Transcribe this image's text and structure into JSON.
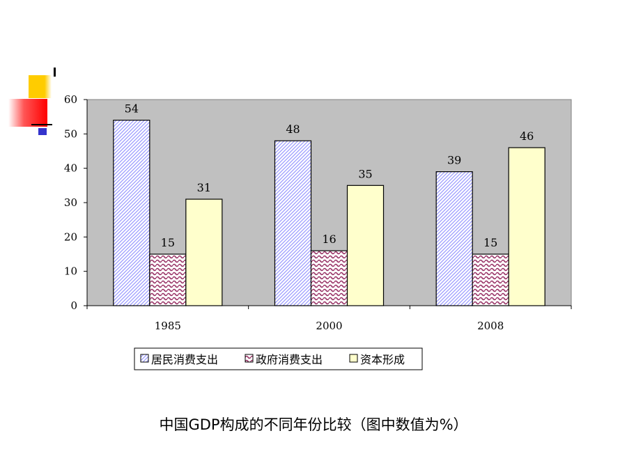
{
  "caption": "中国GDP构成的不同年份比较（图中数值为%）",
  "colors": {
    "plot_bg": "#c0c0c0",
    "bar_outline": "#000000",
    "series_1_hatch": "#9999ff",
    "series_2_hatch": "#993366",
    "series_3_fill": "#ffffcc",
    "deco_yellow": "#ffcc00",
    "deco_red": "#ff0000",
    "deco_blue": "#3333cc"
  },
  "chart_data": {
    "type": "bar",
    "categories": [
      "1985",
      "2000",
      "2008"
    ],
    "series": [
      {
        "name": "居民消费支出",
        "values": [
          54,
          48,
          39
        ],
        "pattern": "diagonal-hatch-blue"
      },
      {
        "name": "政府消费支出",
        "values": [
          15,
          16,
          15
        ],
        "pattern": "wave-hatch-maroon"
      },
      {
        "name": "资本形成",
        "values": [
          31,
          35,
          46
        ],
        "pattern": "solid-light-yellow"
      }
    ],
    "yticks": [
      0,
      10,
      20,
      30,
      40,
      50,
      60
    ],
    "ylim": [
      0,
      60
    ],
    "data_labels": true,
    "grid": false,
    "legend": "bottom"
  }
}
